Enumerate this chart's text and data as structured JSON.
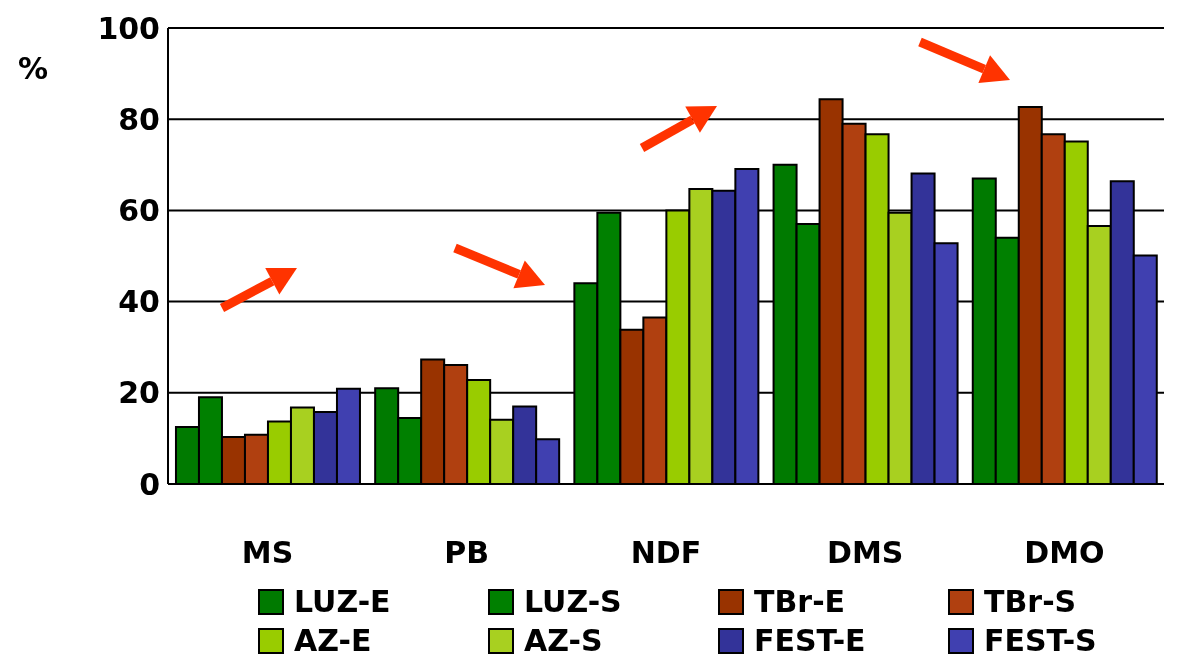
{
  "chart_data": {
    "type": "bar",
    "ylabel": "%",
    "categories": [
      "MS",
      "PB",
      "NDF",
      "DMS",
      "DMO"
    ],
    "series": [
      {
        "name": "LUZ-E",
        "color": "#007a00",
        "values": [
          12.5,
          21,
          44,
          70,
          67
        ]
      },
      {
        "name": "LUZ-S",
        "color": "#008000",
        "values": [
          19,
          14.5,
          59.5,
          57,
          54
        ]
      },
      {
        "name": "TBr-E",
        "color": "#993300",
        "values": [
          10.3,
          27.3,
          33.8,
          84.4,
          82.7
        ]
      },
      {
        "name": "TBr-S",
        "color": "#b04010",
        "values": [
          10.8,
          26.1,
          36.5,
          79,
          76.7
        ]
      },
      {
        "name": "AZ-E",
        "color": "#99cc00",
        "values": [
          13.7,
          22.8,
          60,
          76.7,
          75.1
        ]
      },
      {
        "name": "AZ-S",
        "color": "#a8d020",
        "values": [
          16.8,
          14.1,
          64.7,
          59.5,
          56.6
        ]
      },
      {
        "name": "FEST-E",
        "color": "#333399",
        "values": [
          15.8,
          17,
          64.3,
          68.1,
          66.4
        ]
      },
      {
        "name": "FEST-S",
        "color": "#4040b0",
        "values": [
          20.9,
          9.8,
          69.1,
          52.8,
          50.1
        ]
      }
    ],
    "ylim": [
      0,
      100
    ],
    "yticks": [
      0,
      20,
      40,
      60,
      80,
      100
    ],
    "grid": "y",
    "legend": "bottom"
  }
}
